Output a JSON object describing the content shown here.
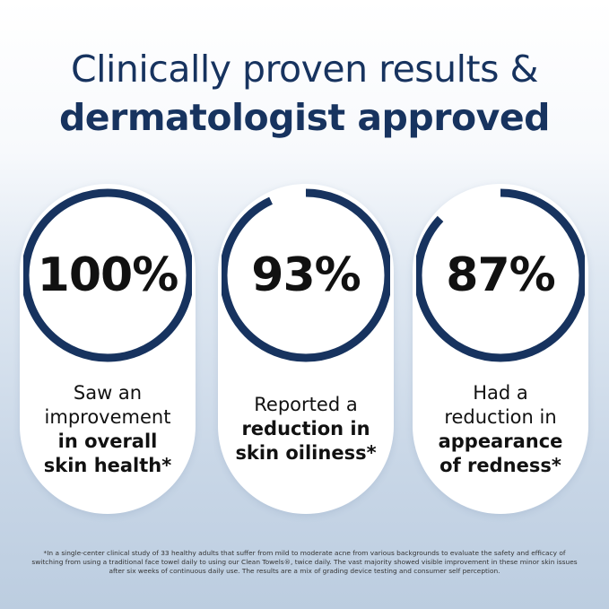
{
  "title": {
    "line1": "Clinically proven results &",
    "line2": "dermatologist approved"
  },
  "accent_color": "#17335f",
  "stats": [
    {
      "value": "100%",
      "progress": 100,
      "lines": [
        {
          "text": "Saw an",
          "bold": false
        },
        {
          "text": "improvement",
          "bold": false
        },
        {
          "text": "in overall",
          "bold": true
        },
        {
          "text": "skin health*",
          "bold": true
        }
      ]
    },
    {
      "value": "93%",
      "progress": 93,
      "lines": [
        {
          "text": "Reported a",
          "bold": false
        },
        {
          "text": "reduction in",
          "bold": true
        },
        {
          "text": "skin oiliness*",
          "bold": true
        }
      ]
    },
    {
      "value": "87%",
      "progress": 87,
      "lines": [
        {
          "text": "Had a",
          "bold": false
        },
        {
          "text": "reduction in",
          "bold": false
        },
        {
          "text": "appearance",
          "bold": true
        },
        {
          "text": "of redness*",
          "bold": true
        }
      ]
    }
  ],
  "footnote": "*In a single-center clinical study of 33 healthy adults that suffer from mild to moderate acne from various backgrounds to evaluate the safety and efficacy of switching from using a traditional face towel daily to using our Clean Towels®, twice daily. The vast majority showed visible improvement in these minor skin issues after six weeks of continuous daily use. The results are a mix of grading device testing and consumer self perception."
}
